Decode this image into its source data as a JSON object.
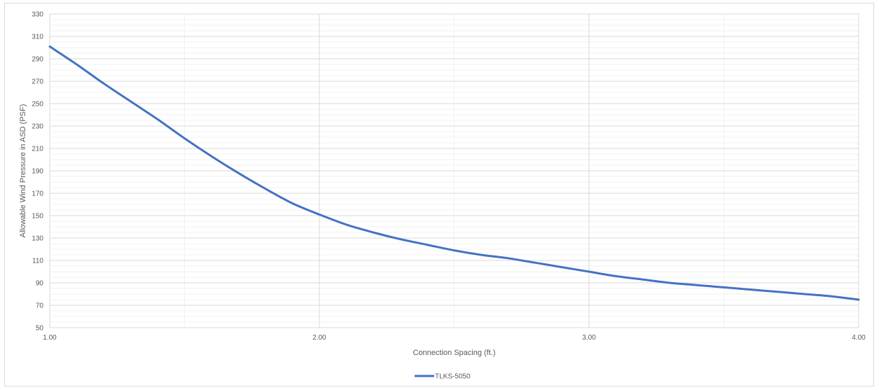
{
  "chart_data": {
    "type": "line",
    "title": "",
    "xlabel": "Connection Spacing (ft.)",
    "ylabel": "Allowable Wind Pressure in ASD (PSF)",
    "xlim": [
      1,
      4
    ],
    "ylim": [
      50,
      330
    ],
    "x_ticks": [
      "1.00",
      "2.00",
      "3.00",
      "4.00"
    ],
    "y_ticks": [
      "50",
      "70",
      "90",
      "110",
      "130",
      "150",
      "170",
      "190",
      "210",
      "230",
      "250",
      "270",
      "290",
      "310",
      "330"
    ],
    "grid": true,
    "legend_position": "bottom",
    "series": [
      {
        "name": "TLKS-5050",
        "color": "#4472c4",
        "points": [
          [
            1.0,
            301
          ],
          [
            1.1,
            285
          ],
          [
            1.2,
            268
          ],
          [
            1.3,
            252
          ],
          [
            1.4,
            236
          ],
          [
            1.5,
            219
          ],
          [
            1.6,
            203
          ],
          [
            1.7,
            188
          ],
          [
            1.8,
            174
          ],
          [
            1.9,
            161
          ],
          [
            2.0,
            151
          ],
          [
            2.1,
            142
          ],
          [
            2.2,
            135
          ],
          [
            2.3,
            129
          ],
          [
            2.4,
            124
          ],
          [
            2.5,
            119
          ],
          [
            2.6,
            115
          ],
          [
            2.7,
            112
          ],
          [
            2.8,
            108
          ],
          [
            2.9,
            104
          ],
          [
            3.0,
            100
          ],
          [
            3.1,
            96
          ],
          [
            3.2,
            93
          ],
          [
            3.3,
            90
          ],
          [
            3.4,
            88
          ],
          [
            3.5,
            86
          ],
          [
            3.6,
            84
          ],
          [
            3.7,
            82
          ],
          [
            3.8,
            80
          ],
          [
            3.9,
            78
          ],
          [
            4.0,
            75
          ]
        ]
      }
    ]
  }
}
